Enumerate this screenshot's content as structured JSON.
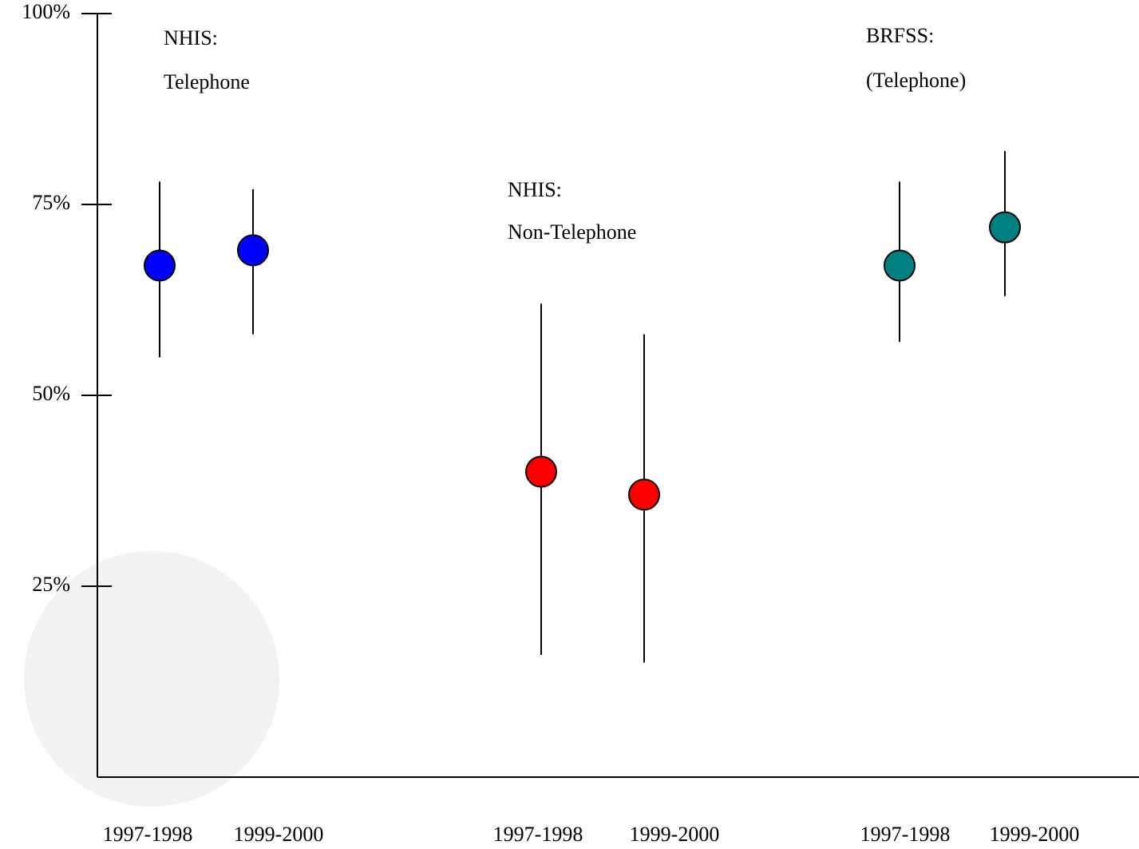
{
  "chart_data": {
    "type": "errorbar",
    "ylim": [
      0,
      100
    ],
    "yticks": [
      {
        "value": 25,
        "label": "25%"
      },
      {
        "value": 50,
        "label": "50%"
      },
      {
        "value": 75,
        "label": "75%"
      },
      {
        "value": 100,
        "label": "100%"
      }
    ],
    "series": [
      {
        "annotation": [
          "NHIS:",
          "Telephone"
        ],
        "color": "#0000ff",
        "categories": [
          "1997-1998",
          "1999-2000"
        ],
        "values": [
          67,
          69
        ],
        "lower": [
          55,
          58
        ],
        "upper": [
          78,
          77
        ]
      },
      {
        "annotation": [
          "NHIS:",
          "Non-Telephone"
        ],
        "color": "#ff0000",
        "categories": [
          "1997-1998",
          "1999-2000"
        ],
        "values": [
          40,
          37
        ],
        "lower": [
          16,
          15
        ],
        "upper": [
          62,
          58
        ]
      },
      {
        "annotation": [
          "BRFSS:",
          "(Telephone)"
        ],
        "color": "#008080",
        "categories": [
          "1997-1998",
          "1999-2000"
        ],
        "values": [
          67,
          72
        ],
        "lower": [
          57,
          63
        ],
        "upper": [
          78,
          82
        ]
      }
    ]
  }
}
